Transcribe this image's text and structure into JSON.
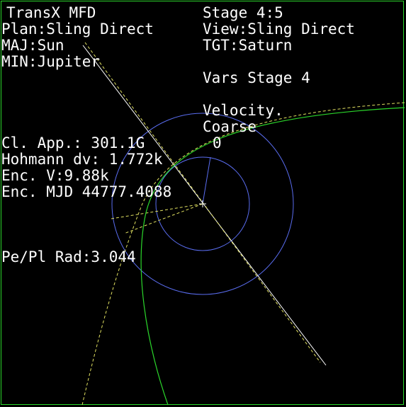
{
  "header": {
    "title": "TransX MFD",
    "stage": "Stage 4:5",
    "plan": "Plan:Sling Direct",
    "view": "View:Sling Direct",
    "maj": "MAJ:Sun",
    "tgt": "TGT:Saturn",
    "min": "MIN:Jupiter"
  },
  "vars": {
    "title": "Vars Stage 4",
    "parameter": "Velocity.",
    "mode": "Coarse",
    "value": "0"
  },
  "readouts": {
    "closest_approach": "Cl. App.: 301.1G",
    "hohmann_dv": "Hohmann dv: 1.772k",
    "encounter_velocity": "Enc. V:9.88k",
    "encounter_mjd": "Enc. MJD 44777.4088",
    "pe_pl_rad": "Pe/Pl Rad:3.044"
  },
  "colors": {
    "text": "#ffffff",
    "frame": "#2bd62b",
    "orbit_circles": "#5a6df0",
    "trajectory": "#2bd62b",
    "dashed_path": "#e0e060",
    "direction_line": "#ffffff"
  }
}
